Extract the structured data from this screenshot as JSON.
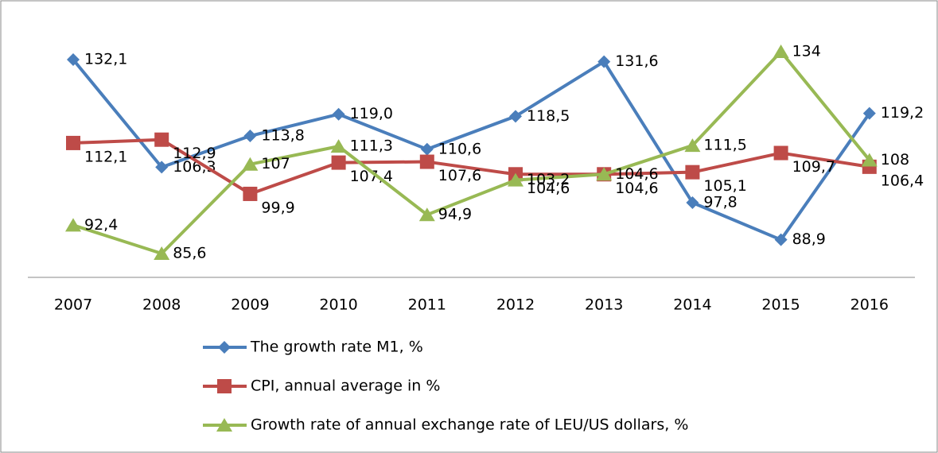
{
  "chart_data": {
    "type": "line",
    "categories": [
      "2007",
      "2008",
      "2009",
      "2010",
      "2011",
      "2012",
      "2013",
      "2014",
      "2015",
      "2016"
    ],
    "series": [
      {
        "name": "The growth rate M1, %",
        "color": "#4a7ebb",
        "marker": "diamond",
        "values": [
          132.1,
          106.3,
          113.8,
          119.0,
          110.6,
          118.5,
          131.6,
          97.8,
          88.9,
          119.2
        ],
        "value_labels": [
          "132,1",
          "106,3",
          "113,8",
          "119,0",
          "110,6",
          "118,5",
          "131,6",
          "97,8",
          "88,9",
          "119,2"
        ]
      },
      {
        "name": "CPI, annual average in %",
        "color": "#be4b48",
        "marker": "square",
        "values": [
          112.1,
          112.9,
          99.9,
          107.4,
          107.6,
          104.6,
          104.6,
          105.1,
          109.7,
          106.4
        ],
        "value_labels": [
          "112,1",
          "112,9",
          "99,9",
          "107,4",
          "107,6",
          "104,6",
          "104,6",
          "105,1",
          "109,7",
          "106,4"
        ]
      },
      {
        "name": "Growth rate of annual exchange rate of LEU/US dollars, %",
        "color": "#98b954",
        "marker": "triangle",
        "values": [
          92.4,
          85.6,
          107,
          111.3,
          94.9,
          103.2,
          104.6,
          111.5,
          134,
          108
        ],
        "value_labels": [
          "92,4",
          "85,6",
          "107",
          "111,3",
          "94,9",
          "103,2",
          "104,6",
          "111,5",
          "134",
          "108"
        ]
      }
    ]
  }
}
